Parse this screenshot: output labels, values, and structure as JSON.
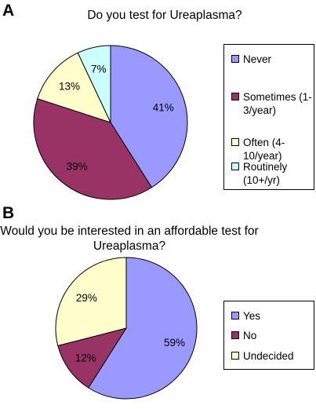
{
  "chart_data": [
    {
      "type": "pie",
      "panel": "A",
      "title": "Do you test for Ureaplasma?",
      "slices": [
        {
          "label": "Never",
          "value": 41,
          "data_label": "41%",
          "color": "#9999ff"
        },
        {
          "label": "Sometimes (1-3/year)",
          "value": 39,
          "data_label": "39%",
          "color": "#993366"
        },
        {
          "label": "Often (4-10/year)",
          "value": 13,
          "data_label": "13%",
          "color": "#ffffcc"
        },
        {
          "label": "Routinely (10+/yr)",
          "value": 7,
          "data_label": "7%",
          "color": "#ccffff"
        }
      ],
      "legend_position": "right"
    },
    {
      "type": "pie",
      "panel": "B",
      "title": "Would you be interested in an affordable test for Ureaplasma?",
      "slices": [
        {
          "label": "Yes",
          "value": 59,
          "data_label": "59%",
          "color": "#9999ff"
        },
        {
          "label": "No",
          "value": 12,
          "data_label": "12%",
          "color": "#993366"
        },
        {
          "label": "Undecided",
          "value": 29,
          "data_label": "29%",
          "color": "#ffffcc"
        }
      ],
      "legend_position": "right"
    }
  ]
}
